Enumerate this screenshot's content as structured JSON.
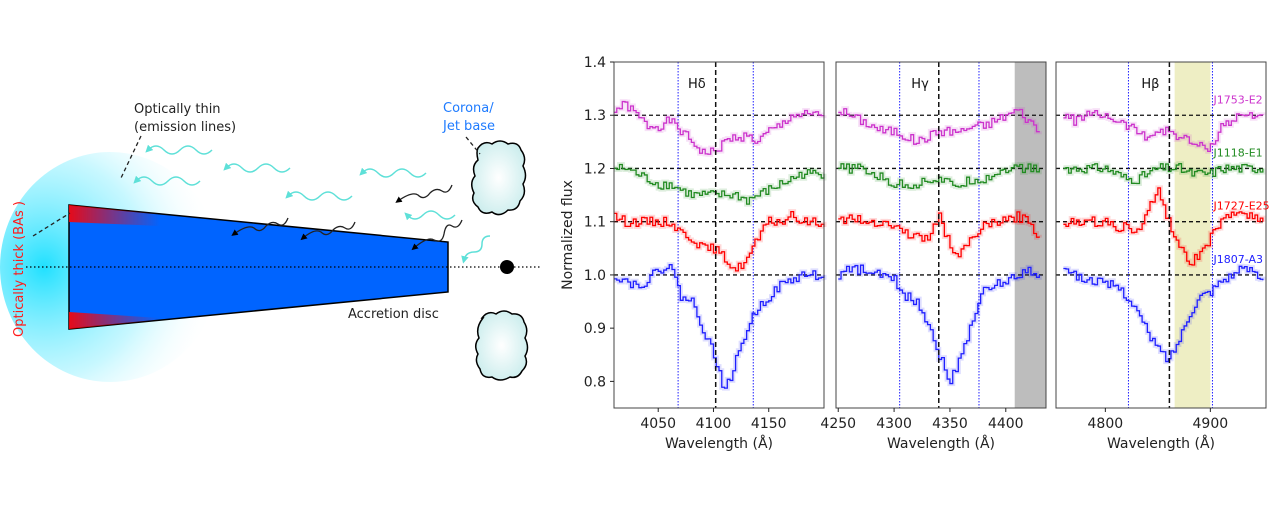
{
  "diagram": {
    "labels": {
      "optically_thin": "Optically thin",
      "emission_lines": "(emission lines)",
      "corona": "Corona/",
      "jet_base": "Jet base",
      "optically_thick": "Optically thick (BAs )",
      "accretion_disc": "Accretion disc"
    },
    "colors": {
      "disc": "#0064ff",
      "thick": "#ff0000",
      "halo": "#20e0ff",
      "photons_thin": "#5ee0d8",
      "corona_text": "#1e7bff"
    }
  },
  "chart_data": [
    {
      "type": "line",
      "panel_label": "Hδ",
      "xlabel": "Wavelength (Å)",
      "ylabel": "Normalized flux",
      "xlim": [
        4010,
        4200
      ],
      "ylim": [
        0.75,
        1.4
      ],
      "xticks": [
        4050,
        4100,
        4150
      ],
      "yticks": [
        0.8,
        0.9,
        1.0,
        1.1,
        1.2,
        1.3,
        1.4
      ],
      "line_center": 4102,
      "blue_dotted": [
        4068,
        4136
      ],
      "x": [
        4010,
        4020,
        4030,
        4040,
        4050,
        4060,
        4070,
        4080,
        4090,
        4100,
        4110,
        4120,
        4130,
        4140,
        4150,
        4160,
        4170,
        4180,
        4190,
        4200
      ],
      "series": [
        {
          "name": "J1753-E2",
          "color": "#cc33cc",
          "values": [
            1.31,
            1.32,
            1.3,
            1.28,
            1.28,
            1.29,
            1.27,
            1.25,
            1.23,
            1.23,
            1.25,
            1.26,
            1.26,
            1.25,
            1.27,
            1.28,
            1.3,
            1.3,
            1.3,
            1.3
          ]
        },
        {
          "name": "J1118-E1",
          "color": "#228b22",
          "values": [
            1.2,
            1.2,
            1.19,
            1.18,
            1.17,
            1.17,
            1.16,
            1.15,
            1.15,
            1.15,
            1.15,
            1.15,
            1.14,
            1.15,
            1.16,
            1.17,
            1.18,
            1.19,
            1.19,
            1.19
          ]
        },
        {
          "name": "J1727-E25",
          "color": "#ff0000",
          "values": [
            1.11,
            1.1,
            1.1,
            1.1,
            1.1,
            1.1,
            1.08,
            1.07,
            1.05,
            1.05,
            1.03,
            1.01,
            1.03,
            1.07,
            1.1,
            1.1,
            1.11,
            1.1,
            1.1,
            1.09
          ]
        },
        {
          "name": "J1807-A3",
          "color": "#1f1fff",
          "values": [
            1.0,
            0.99,
            0.98,
            0.99,
            1.01,
            1.02,
            0.96,
            0.95,
            0.9,
            0.85,
            0.78,
            0.84,
            0.9,
            0.94,
            0.96,
            0.98,
            0.99,
            1.0,
            1.0,
            1.0
          ]
        }
      ]
    },
    {
      "type": "line",
      "panel_label": "Hγ",
      "xlabel": "Wavelength (Å)",
      "xlim": [
        4248,
        4436
      ],
      "ylim": [
        0.75,
        1.4
      ],
      "xticks": [
        4250,
        4300,
        4350,
        4400
      ],
      "line_center": 4340,
      "blue_dotted": [
        4305,
        4376
      ],
      "shaded_region": {
        "range": [
          4408,
          4436
        ],
        "color": "#bdbdbd"
      },
      "x": [
        4250,
        4260,
        4270,
        4280,
        4290,
        4300,
        4310,
        4320,
        4330,
        4340,
        4350,
        4360,
        4370,
        4380,
        4390,
        4400,
        4410,
        4420,
        4430
      ],
      "series": [
        {
          "name": "J1753-E2",
          "color": "#cc33cc",
          "values": [
            1.31,
            1.3,
            1.29,
            1.28,
            1.27,
            1.27,
            1.26,
            1.25,
            1.26,
            1.27,
            1.27,
            1.27,
            1.28,
            1.28,
            1.29,
            1.3,
            1.31,
            1.29,
            1.27
          ]
        },
        {
          "name": "J1118-E1",
          "color": "#228b22",
          "values": [
            1.2,
            1.2,
            1.2,
            1.19,
            1.18,
            1.17,
            1.17,
            1.17,
            1.18,
            1.18,
            1.17,
            1.17,
            1.18,
            1.18,
            1.19,
            1.2,
            1.2,
            1.2,
            1.2
          ]
        },
        {
          "name": "J1727-E25",
          "color": "#ff0000",
          "values": [
            1.1,
            1.11,
            1.1,
            1.1,
            1.1,
            1.09,
            1.08,
            1.07,
            1.07,
            1.11,
            1.05,
            1.04,
            1.07,
            1.09,
            1.1,
            1.1,
            1.11,
            1.1,
            1.07
          ]
        },
        {
          "name": "J1807-A3",
          "color": "#1f1fff",
          "values": [
            1.0,
            1.01,
            1.01,
            1.0,
            1.0,
            0.99,
            0.96,
            0.95,
            0.91,
            0.85,
            0.8,
            0.85,
            0.92,
            0.97,
            0.98,
            0.99,
            1.0,
            1.01,
            1.0
          ]
        }
      ]
    },
    {
      "type": "line",
      "panel_label": "Hβ",
      "xlabel": "Wavelength (Å)",
      "xlim": [
        4753,
        4953
      ],
      "ylim": [
        0.75,
        1.4
      ],
      "xticks": [
        4800,
        4900
      ],
      "line_center": 4861,
      "blue_dotted": [
        4822,
        4902
      ],
      "shaded_region": {
        "range": [
          4866,
          4900
        ],
        "color": "#eeeec4"
      },
      "x": [
        4760,
        4770,
        4780,
        4790,
        4800,
        4810,
        4820,
        4830,
        4840,
        4850,
        4860,
        4870,
        4880,
        4890,
        4900,
        4910,
        4920,
        4930,
        4940,
        4950
      ],
      "series": [
        {
          "name": "J1753-E2",
          "color": "#cc33cc",
          "values": [
            1.3,
            1.29,
            1.3,
            1.3,
            1.3,
            1.29,
            1.28,
            1.27,
            1.26,
            1.27,
            1.27,
            1.26,
            1.25,
            1.24,
            1.24,
            1.28,
            1.29,
            1.3,
            1.3,
            1.3
          ]
        },
        {
          "name": "J1118-E1",
          "color": "#228b22",
          "values": [
            1.2,
            1.2,
            1.2,
            1.2,
            1.2,
            1.19,
            1.18,
            1.18,
            1.19,
            1.2,
            1.2,
            1.2,
            1.19,
            1.19,
            1.19,
            1.2,
            1.2,
            1.2,
            1.2,
            1.2
          ]
        },
        {
          "name": "J1727-E25",
          "color": "#ff0000",
          "values": [
            1.09,
            1.1,
            1.1,
            1.1,
            1.1,
            1.09,
            1.09,
            1.08,
            1.12,
            1.16,
            1.1,
            1.05,
            1.02,
            1.04,
            1.07,
            1.1,
            1.11,
            1.12,
            1.11,
            1.1
          ]
        },
        {
          "name": "J1807-A3",
          "color": "#1f1fff",
          "values": [
            1.02,
            1.0,
            0.99,
            0.99,
            0.98,
            0.98,
            0.96,
            0.93,
            0.89,
            0.86,
            0.84,
            0.88,
            0.93,
            0.96,
            0.97,
            0.99,
            1.0,
            1.01,
            1.01,
            0.99
          ]
        }
      ]
    }
  ]
}
